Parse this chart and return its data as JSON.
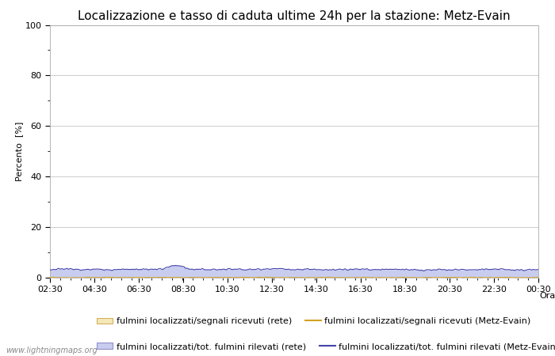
{
  "title": "Localizzazione e tasso di caduta ultime 24h per la stazione: Metz-Evain",
  "ylabel": "Percento  [%]",
  "xlabel": "Orario",
  "watermark": "www.lightningmaps.org",
  "ylim": [
    0,
    100
  ],
  "yticks": [
    0,
    20,
    40,
    60,
    80,
    100
  ],
  "yticks_minor": [
    10,
    30,
    50,
    70,
    90
  ],
  "x_labels": [
    "02:30",
    "04:30",
    "06:30",
    "08:30",
    "10:30",
    "12:30",
    "14:30",
    "16:30",
    "18:30",
    "20:30",
    "22:30",
    "00:30"
  ],
  "n_points": 289,
  "fill_rete_color": "#f5e8b8",
  "fill_rete_edge": "#d4b060",
  "fill_metz_color": "#c8ccee",
  "fill_metz_edge": "#9090cc",
  "line_rete_color": "#d4a020",
  "line_metz_color": "#4444aa",
  "fig_bg_color": "#ffffff",
  "plot_bg_color": "#ffffff",
  "grid_color": "#cccccc",
  "title_fontsize": 11,
  "axis_fontsize": 8,
  "legend_fontsize": 8,
  "tick_fontsize": 8,
  "legend1_label": "fulmini localizzati/segnali ricevuti (rete)",
  "legend2_label": "fulmini localizzati/segnali ricevuti (Metz-Evain)",
  "legend3_label": "fulmini localizzati/tot. fulmini rilevati (rete)",
  "legend4_label": "fulmini localizzati/tot. fulmini rilevati (Metz-Evain)"
}
